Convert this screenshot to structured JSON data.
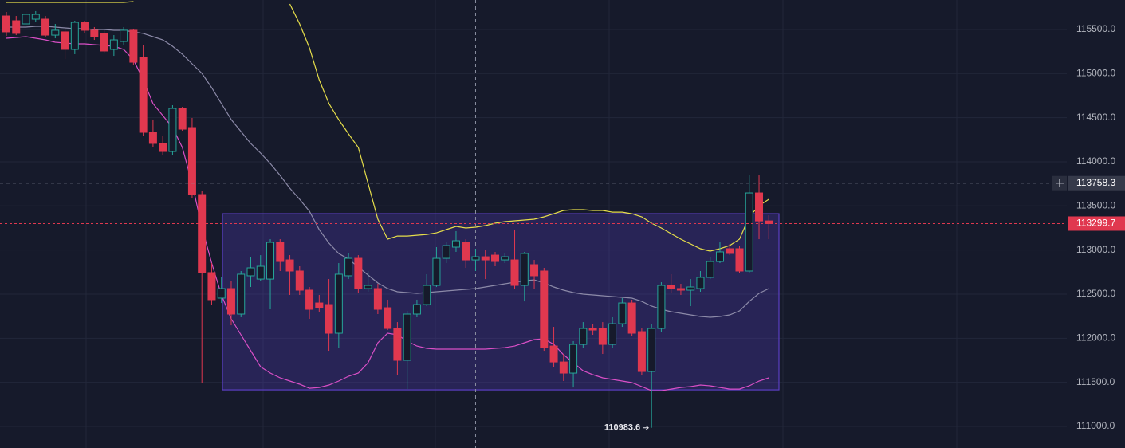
{
  "chart_data": {
    "type": "candlestick",
    "ylim": [
      110756,
      115834
    ],
    "yticks": [
      {
        "value": 111000,
        "label": "111000.0"
      },
      {
        "value": 111500,
        "label": "111500.0"
      },
      {
        "value": 112000,
        "label": "112000.0"
      },
      {
        "value": 112500,
        "label": "112500.0"
      },
      {
        "value": 113000,
        "label": "113000.0"
      },
      {
        "value": 113500,
        "label": "113500.0"
      },
      {
        "value": 114000,
        "label": "114000.0"
      },
      {
        "value": 114500,
        "label": "114500.0"
      },
      {
        "value": 115000,
        "label": "115000.0"
      },
      {
        "value": 115500,
        "label": "115500.0"
      }
    ],
    "grid": true,
    "up_color": "#26a69a",
    "down_color": "#e0384f",
    "candles": {
      "open": [
        115653,
        115599,
        115563,
        115617,
        115617,
        115436,
        115473,
        115274,
        115581,
        115491,
        115455,
        115274,
        115364,
        115491,
        115183,
        114334,
        114208,
        114117,
        114605,
        114388,
        113629,
        112744,
        112455,
        112563,
        112274,
        112708,
        112671,
        112671,
        113087,
        112888,
        112762,
        112545,
        112400,
        112382,
        112057,
        112708,
        112906,
        112563,
        112563,
        112346,
        112111,
        111750,
        112274,
        112382,
        112599,
        112906,
        113033,
        113087,
        112888,
        112924,
        112942,
        112888,
        112888,
        112599,
        112834,
        112762,
        111912,
        111731,
        111605,
        111930,
        112111,
        112111,
        111930,
        112165,
        112400,
        112075,
        111623,
        112111,
        112599,
        112563,
        112545,
        112563,
        112690,
        112870,
        113015,
        113015,
        112762,
        113647,
        113330
      ],
      "high": [
        115698,
        115653,
        115708,
        115708,
        115653,
        115563,
        115509,
        115599,
        115599,
        115527,
        115491,
        115436,
        115527,
        115509,
        115328,
        114479,
        114298,
        114641,
        114623,
        114497,
        113665,
        112852,
        112690,
        112653,
        112762,
        112924,
        112942,
        113123,
        113123,
        112942,
        112816,
        112581,
        112491,
        112671,
        112852,
        112961,
        112942,
        112762,
        112617,
        112437,
        112183,
        112310,
        112437,
        112726,
        113033,
        113087,
        113214,
        113123,
        113015,
        112997,
        112979,
        112961,
        113232,
        112979,
        112888,
        112798,
        112129,
        111822,
        111967,
        112183,
        112165,
        112183,
        112238,
        112455,
        112437,
        112111,
        112165,
        112635,
        112726,
        112617,
        112671,
        112762,
        112924,
        113087,
        113069,
        113051,
        113846,
        113846,
        113394
      ],
      "low": [
        115427,
        115436,
        115545,
        115581,
        115418,
        115400,
        115165,
        115220,
        115455,
        115382,
        115238,
        115201,
        115328,
        115093,
        114298,
        114171,
        114081,
        114081,
        114352,
        113593,
        111497,
        112382,
        112400,
        112147,
        112238,
        112581,
        112653,
        112328,
        112762,
        112491,
        112491,
        112220,
        112292,
        111858,
        111894,
        112671,
        112509,
        112527,
        112274,
        112093,
        111587,
        111424,
        112238,
        112364,
        112581,
        112852,
        112979,
        112798,
        112762,
        112671,
        112816,
        112852,
        112563,
        112418,
        112563,
        111858,
        111677,
        111515,
        111442,
        111894,
        112039,
        111822,
        111894,
        112129,
        112021,
        111587,
        110983.6,
        112075,
        112509,
        112491,
        112364,
        112527,
        112671,
        112852,
        112942,
        112744,
        112744,
        113123,
        113123
      ],
      "close": [
        115473,
        115455,
        115671,
        115671,
        115436,
        115491,
        115274,
        115581,
        115491,
        115418,
        115256,
        115382,
        115491,
        115129,
        114334,
        114208,
        114117,
        114605,
        114370,
        113629,
        112744,
        112437,
        112563,
        112274,
        112726,
        112798,
        112816,
        113087,
        112870,
        112762,
        112545,
        112328,
        112346,
        112057,
        112726,
        112906,
        112563,
        112599,
        112328,
        112111,
        111750,
        112274,
        112382,
        112599,
        112906,
        113051,
        113105,
        112888,
        112924,
        112888,
        112870,
        112924,
        112599,
        112961,
        112708,
        111894,
        111731,
        111605,
        111930,
        112111,
        112093,
        111930,
        112165,
        112400,
        112057,
        111623,
        112111,
        112599,
        112563,
        112545,
        112581,
        112690,
        112870,
        112979,
        112961,
        112762,
        113647,
        113330,
        113299.7
      ]
    },
    "bands": {
      "upper": {
        "color": "#e6de4a",
        "values": [
          115807,
          115807,
          115807,
          115807,
          115807,
          115807,
          115807,
          115807,
          115807,
          115807,
          115807,
          115807,
          115807,
          115816,
          null,
          null,
          null,
          null,
          null,
          null,
          null,
          null,
          null,
          null,
          null,
          null,
          null,
          null,
          null,
          115789,
          115563,
          115292,
          114930,
          114659,
          114479,
          114316,
          114162,
          113756,
          113349,
          113123,
          113159,
          113159,
          113168,
          113177,
          113195,
          113232,
          113268,
          113250,
          113259,
          113277,
          113304,
          113322,
          113331,
          113340,
          113349,
          113376,
          113412,
          113449,
          113458,
          113458,
          113449,
          113449,
          113430,
          113430,
          113412,
          113376,
          113304,
          113250,
          113186,
          113123,
          113069,
          113015,
          112988,
          113015,
          113051,
          113123,
          113376,
          113503,
          113575
        ]
      },
      "middle": {
        "color": "#8c8aa8",
        "values": [
          115527,
          115527,
          115527,
          115536,
          115536,
          115527,
          115518,
          115509,
          115509,
          115500,
          115500,
          115491,
          115491,
          115473,
          115455,
          115418,
          115382,
          115310,
          115220,
          115111,
          115003,
          114840,
          114659,
          114479,
          114343,
          114208,
          114099,
          113981,
          113846,
          113701,
          113575,
          113440,
          113232,
          113078,
          112961,
          112897,
          112807,
          112717,
          112626,
          112563,
          112527,
          112518,
          112509,
          112518,
          112527,
          112536,
          112545,
          112554,
          112563,
          112581,
          112599,
          112617,
          112635,
          112653,
          112662,
          112626,
          112581,
          112545,
          112518,
          112500,
          112491,
          112482,
          112473,
          112464,
          112455,
          112418,
          112364,
          112328,
          112301,
          112283,
          112265,
          112247,
          112238,
          112247,
          112265,
          112310,
          112418,
          112509,
          112563
        ]
      },
      "lower": {
        "color": "#d94fc6",
        "values": [
          115400,
          115409,
          115418,
          115400,
          115382,
          115355,
          115346,
          115337,
          115337,
          115328,
          115319,
          115310,
          115274,
          115156,
          114930,
          114659,
          114524,
          114388,
          114162,
          113756,
          113259,
          112852,
          112491,
          112220,
          112039,
          111858,
          111677,
          111605,
          111551,
          111515,
          111479,
          111433,
          111442,
          111470,
          111515,
          111569,
          111605,
          111723,
          111949,
          112057,
          112039,
          111967,
          111912,
          111885,
          111876,
          111876,
          111876,
          111876,
          111876,
          111876,
          111885,
          111894,
          111912,
          111949,
          111985,
          111994,
          111930,
          111813,
          111723,
          111632,
          111587,
          111551,
          111533,
          111515,
          111497,
          111452,
          111406,
          111406,
          111424,
          111442,
          111452,
          111470,
          111461,
          111442,
          111424,
          111424,
          111461,
          111515,
          111551
        ]
      }
    },
    "range_box": {
      "top": 113412,
      "bottom": 111415,
      "color": "#5b3fc4"
    },
    "crosshair_price": 113758.3,
    "last_price": 113299.7,
    "low_marker": 110983.6
  }
}
